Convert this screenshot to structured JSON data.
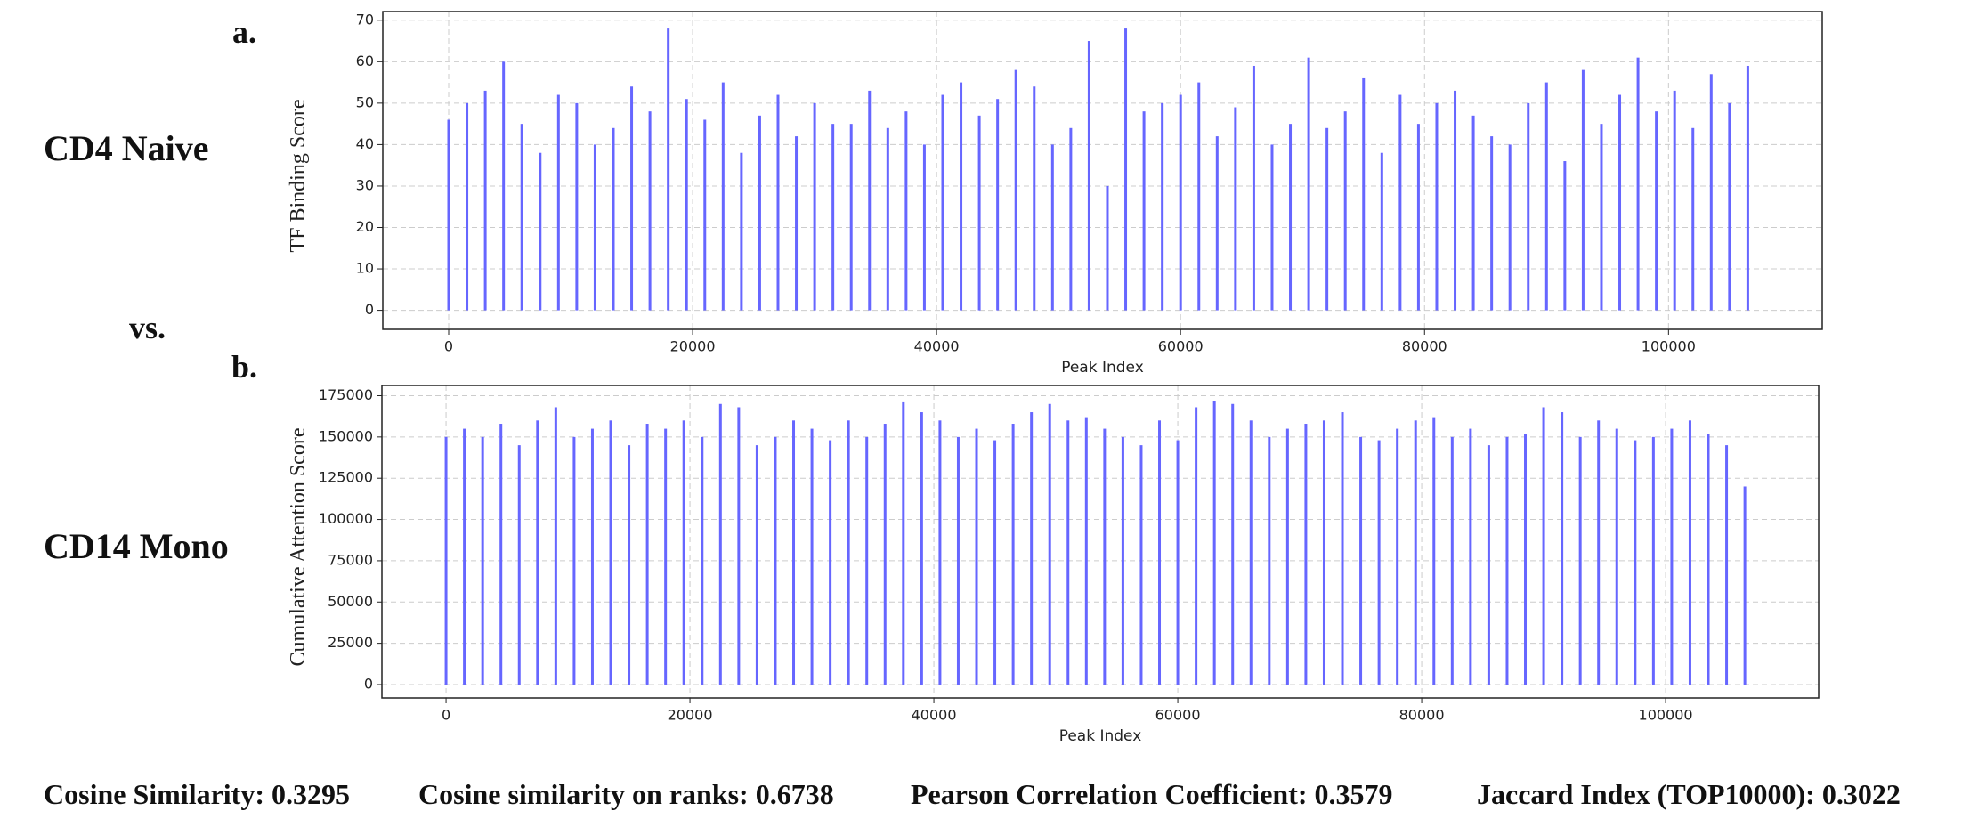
{
  "panel_labels": [
    "a.",
    "b."
  ],
  "row_labels": [
    "CD4 Naive",
    "vs.",
    "CD14 Mono"
  ],
  "metrics": [
    "Cosine Similarity: 0.3295",
    "Cosine similarity on ranks: 0.6738",
    "Pearson Correlation Coefficient: 0.3579",
    "Jaccard Index (TOP10000): 0.3022"
  ],
  "chart_data": [
    {
      "type": "bar",
      "x_label": "Peak Index",
      "y_label": "TF Binding Score",
      "color": "#6666ff",
      "grid": true,
      "x": [
        0,
        1500,
        3000,
        4500,
        6000,
        7500,
        9000,
        10500,
        12000,
        13500,
        15000,
        16500,
        18000,
        19500,
        21000,
        22500,
        24000,
        25500,
        27000,
        28500,
        30000,
        31500,
        33000,
        34500,
        36000,
        37500,
        39000,
        40500,
        42000,
        43500,
        45000,
        46500,
        48000,
        49500,
        51000,
        52500,
        54000,
        55500,
        57000,
        58500,
        60000,
        61500,
        63000,
        64500,
        66000,
        67500,
        69000,
        70500,
        72000,
        73500,
        75000,
        76500,
        78000,
        79500,
        81000,
        82500,
        84000,
        85500,
        87000,
        88500,
        90000,
        91500,
        93000,
        94500,
        96000,
        97500,
        99000,
        100500,
        102000,
        103500,
        105000,
        106500
      ],
      "values": [
        46,
        50,
        53,
        60,
        45,
        38,
        52,
        50,
        40,
        44,
        54,
        48,
        68,
        51,
        46,
        55,
        38,
        47,
        52,
        42,
        50,
        45,
        45,
        53,
        44,
        48,
        40,
        52,
        55,
        47,
        51,
        58,
        54,
        40,
        44,
        65,
        30,
        68,
        48,
        50,
        52,
        55,
        42,
        49,
        59,
        40,
        45,
        61,
        44,
        48,
        56,
        38,
        52,
        45,
        50,
        53,
        47,
        42,
        40,
        50,
        55,
        36,
        58,
        45,
        52,
        61,
        48,
        53,
        44,
        57,
        50,
        59
      ],
      "xlim": [
        -5400,
        112600
      ],
      "ylim": [
        -4.6,
        72.1
      ],
      "xticks": [
        0,
        20000,
        40000,
        60000,
        80000,
        100000
      ],
      "yticks": [
        0,
        10,
        20,
        30,
        40,
        50,
        60,
        70
      ]
    },
    {
      "type": "bar",
      "x_label": "Peak Index",
      "y_label": "Cumulative Attention Score",
      "color": "#6666ff",
      "grid": true,
      "x": [
        0,
        1500,
        3000,
        4500,
        6000,
        7500,
        9000,
        10500,
        12000,
        13500,
        15000,
        16500,
        18000,
        19500,
        21000,
        22500,
        24000,
        25500,
        27000,
        28500,
        30000,
        31500,
        33000,
        34500,
        36000,
        37500,
        39000,
        40500,
        42000,
        43500,
        45000,
        46500,
        48000,
        49500,
        51000,
        52500,
        54000,
        55500,
        57000,
        58500,
        60000,
        61500,
        63000,
        64500,
        66000,
        67500,
        69000,
        70500,
        72000,
        73500,
        75000,
        76500,
        78000,
        79500,
        81000,
        82500,
        84000,
        85500,
        87000,
        88500,
        90000,
        91500,
        93000,
        94500,
        96000,
        97500,
        99000,
        100500,
        102000,
        103500,
        105000,
        106500
      ],
      "values": [
        150000,
        155000,
        150000,
        158000,
        145000,
        160000,
        168000,
        150000,
        155000,
        160000,
        145000,
        158000,
        155000,
        160000,
        150000,
        170000,
        168000,
        145000,
        150000,
        160000,
        155000,
        148000,
        160000,
        150000,
        158000,
        171000,
        165000,
        160000,
        150000,
        155000,
        148000,
        158000,
        165000,
        170000,
        160000,
        162000,
        155000,
        150000,
        145000,
        160000,
        148000,
        168000,
        172000,
        170000,
        160000,
        150000,
        155000,
        158000,
        160000,
        165000,
        150000,
        148000,
        155000,
        160000,
        162000,
        150000,
        155000,
        145000,
        150000,
        152000,
        168000,
        165000,
        150000,
        160000,
        155000,
        148000,
        150000,
        155000,
        160000,
        152000,
        145000,
        120000
      ],
      "xlim": [
        -5260,
        112550
      ],
      "ylim": [
        -8100,
        181200
      ],
      "xticks": [
        0,
        20000,
        40000,
        60000,
        80000,
        100000
      ],
      "yticks": [
        0,
        25000,
        50000,
        75000,
        100000,
        125000,
        150000,
        175000
      ]
    }
  ]
}
